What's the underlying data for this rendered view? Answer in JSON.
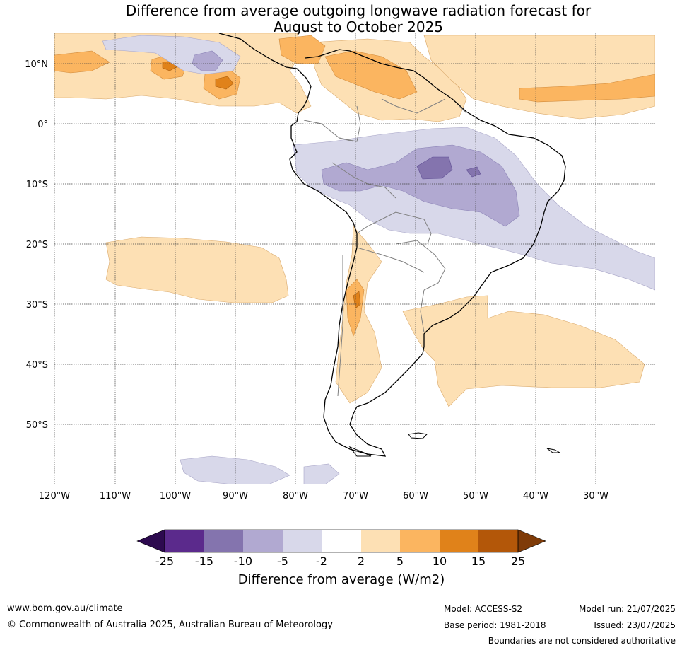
{
  "title": {
    "line1": "Difference from average outgoing longwave radiation forecast for",
    "line2": "August to October 2025"
  },
  "lat_labels": [
    "10°N",
    "0°",
    "10°S",
    "20°S",
    "30°S",
    "40°S",
    "50°S"
  ],
  "lon_labels": [
    "120°W",
    "110°W",
    "100°W",
    "90°W",
    "80°W",
    "70°W",
    "60°W",
    "50°W",
    "40°W",
    "30°W"
  ],
  "colorbar": {
    "ticks": [
      "-25",
      "-15",
      "-10",
      "-5",
      "-2",
      "2",
      "5",
      "10",
      "15",
      "25"
    ],
    "label": "Difference from average (W/m2)",
    "colors": [
      "#2d0a4f",
      "#5b2a8c",
      "#8474ae",
      "#b1a9d1",
      "#d8d8ea",
      "#ffffff",
      "#fde0b4",
      "#fbb560",
      "#e0821a",
      "#b35709",
      "#7f3b08"
    ]
  },
  "footer": {
    "website": "www.bom.gov.au/climate",
    "copyright": "© Commonwealth of Australia 2025, Australian Bureau of Meteorology",
    "model": "Model: ACCESS-S2",
    "base_period": "Base period: 1981-2018",
    "model_run": "Model run: 21/07/2025",
    "issued": "Issued: 23/07/2025",
    "boundaries_note": "Boundaries are not considered authoritative"
  }
}
